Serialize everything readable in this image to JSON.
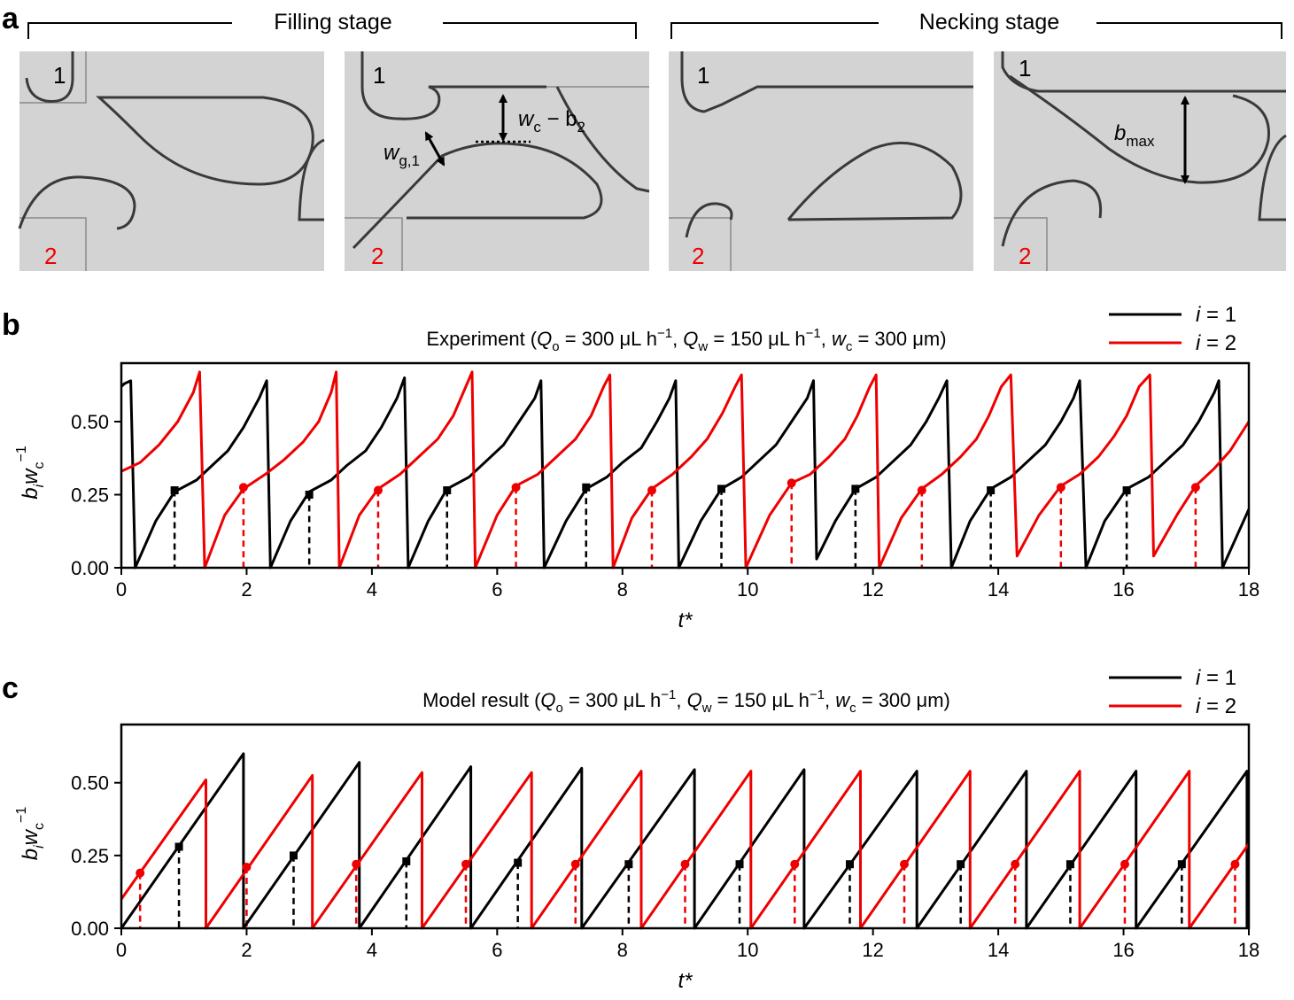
{
  "panels": {
    "a": {
      "letter": "a",
      "stages": [
        "Filling stage",
        "Necking stage"
      ],
      "inlet_1": "1",
      "inlet_2": "2",
      "annotations": {
        "wg1_main": "w",
        "wg1_sub": "g,1",
        "wcb2_w": "w",
        "wcb2_c": "c",
        "wcb2_minus": " − b",
        "wcb2_sub": "2",
        "bmax_b": "b",
        "bmax_sub": "max"
      }
    },
    "b": {
      "letter": "b",
      "title": "Experiment (Qo = 300 μL h−1, Qw = 150 μL h−1, wc = 300 μm)"
    },
    "c": {
      "letter": "c",
      "title": "Model result (Qo = 300 μL h−1, Qw = 150 μL h−1, wc = 300 μm)"
    }
  },
  "colors": {
    "series1": "#000000",
    "series2": "#ee0000",
    "photo_bg": "#d3d3d3",
    "interface": "#3a3a3a"
  },
  "chart_data": [
    {
      "id": "b",
      "type": "line",
      "title": "Experiment (Qo = 300 μL h−1, Qw = 150 μL h−1, wc = 300 μm)",
      "xlabel": "t*",
      "ylabel": "b_i w_c^−1",
      "xlim": [
        0,
        18
      ],
      "ylim": [
        0,
        0.7
      ],
      "xticks": [
        0,
        2,
        4,
        6,
        8,
        10,
        12,
        14,
        16,
        18
      ],
      "yticks": [
        0,
        0.25,
        0.5
      ],
      "ytick_labels": [
        "0.00",
        "0.25",
        "0.50"
      ],
      "legend": [
        "i = 1",
        "i = 2"
      ],
      "series": [
        {
          "name": "i = 1",
          "points": [
            [
              0,
              0.62
            ],
            [
              0.05,
              0.63
            ],
            [
              0.15,
              0.64
            ],
            [
              0.22,
              0.0
            ],
            [
              0.55,
              0.16
            ],
            [
              0.85,
              0.26
            ],
            [
              1.2,
              0.3
            ],
            [
              1.45,
              0.35
            ],
            [
              1.7,
              0.4
            ],
            [
              1.95,
              0.48
            ],
            [
              2.2,
              0.58
            ],
            [
              2.32,
              0.64
            ],
            [
              2.38,
              0.0
            ],
            [
              2.7,
              0.16
            ],
            [
              3.0,
              0.26
            ],
            [
              3.35,
              0.3
            ],
            [
              3.6,
              0.35
            ],
            [
              3.9,
              0.4
            ],
            [
              4.15,
              0.48
            ],
            [
              4.4,
              0.58
            ],
            [
              4.52,
              0.65
            ],
            [
              4.58,
              0.0
            ],
            [
              4.9,
              0.16
            ],
            [
              5.2,
              0.27
            ],
            [
              5.55,
              0.31
            ],
            [
              5.8,
              0.36
            ],
            [
              6.1,
              0.42
            ],
            [
              6.35,
              0.5
            ],
            [
              6.6,
              0.58
            ],
            [
              6.7,
              0.64
            ],
            [
              6.75,
              0.0
            ],
            [
              7.1,
              0.16
            ],
            [
              7.42,
              0.27
            ],
            [
              7.75,
              0.31
            ],
            [
              8.0,
              0.36
            ],
            [
              8.3,
              0.41
            ],
            [
              8.55,
              0.5
            ],
            [
              8.75,
              0.58
            ],
            [
              8.85,
              0.64
            ],
            [
              8.9,
              0.0
            ],
            [
              9.25,
              0.16
            ],
            [
              9.58,
              0.27
            ],
            [
              9.9,
              0.31
            ],
            [
              10.15,
              0.36
            ],
            [
              10.45,
              0.42
            ],
            [
              10.7,
              0.5
            ],
            [
              10.95,
              0.58
            ],
            [
              11.05,
              0.64
            ],
            [
              11.1,
              0.03
            ],
            [
              11.4,
              0.16
            ],
            [
              11.72,
              0.27
            ],
            [
              12.05,
              0.31
            ],
            [
              12.3,
              0.36
            ],
            [
              12.6,
              0.42
            ],
            [
              12.85,
              0.5
            ],
            [
              13.05,
              0.58
            ],
            [
              13.18,
              0.64
            ],
            [
              13.25,
              0.0
            ],
            [
              13.55,
              0.16
            ],
            [
              13.88,
              0.27
            ],
            [
              14.2,
              0.31
            ],
            [
              14.45,
              0.36
            ],
            [
              14.75,
              0.42
            ],
            [
              15.0,
              0.5
            ],
            [
              15.2,
              0.58
            ],
            [
              15.3,
              0.64
            ],
            [
              15.4,
              0.0
            ],
            [
              15.7,
              0.16
            ],
            [
              16.05,
              0.27
            ],
            [
              16.4,
              0.31
            ],
            [
              16.65,
              0.36
            ],
            [
              16.95,
              0.42
            ],
            [
              17.2,
              0.5
            ],
            [
              17.45,
              0.6
            ],
            [
              17.52,
              0.64
            ],
            [
              17.58,
              0.0
            ],
            [
              18,
              0.2
            ]
          ]
        },
        {
          "name": "i = 2",
          "points": [
            [
              0,
              0.33
            ],
            [
              0.3,
              0.36
            ],
            [
              0.6,
              0.42
            ],
            [
              0.9,
              0.5
            ],
            [
              1.15,
              0.6
            ],
            [
              1.25,
              0.67
            ],
            [
              1.33,
              0.0
            ],
            [
              1.65,
              0.18
            ],
            [
              1.95,
              0.27
            ],
            [
              2.3,
              0.32
            ],
            [
              2.6,
              0.37
            ],
            [
              2.9,
              0.43
            ],
            [
              3.15,
              0.5
            ],
            [
              3.35,
              0.6
            ],
            [
              3.43,
              0.67
            ],
            [
              3.48,
              0.0
            ],
            [
              3.8,
              0.18
            ],
            [
              4.1,
              0.27
            ],
            [
              4.45,
              0.32
            ],
            [
              4.75,
              0.38
            ],
            [
              5.05,
              0.44
            ],
            [
              5.3,
              0.52
            ],
            [
              5.5,
              0.62
            ],
            [
              5.6,
              0.67
            ],
            [
              5.65,
              0.0
            ],
            [
              6.0,
              0.18
            ],
            [
              6.3,
              0.28
            ],
            [
              6.65,
              0.32
            ],
            [
              6.95,
              0.38
            ],
            [
              7.25,
              0.44
            ],
            [
              7.5,
              0.52
            ],
            [
              7.7,
              0.62
            ],
            [
              7.8,
              0.66
            ],
            [
              7.85,
              0.0
            ],
            [
              8.15,
              0.17
            ],
            [
              8.47,
              0.27
            ],
            [
              8.8,
              0.32
            ],
            [
              9.1,
              0.38
            ],
            [
              9.35,
              0.44
            ],
            [
              9.6,
              0.53
            ],
            [
              9.8,
              0.62
            ],
            [
              9.9,
              0.66
            ],
            [
              9.97,
              0.0
            ],
            [
              10.35,
              0.18
            ],
            [
              10.7,
              0.29
            ],
            [
              11.0,
              0.32
            ],
            [
              11.3,
              0.38
            ],
            [
              11.55,
              0.44
            ],
            [
              11.75,
              0.52
            ],
            [
              11.95,
              0.62
            ],
            [
              12.05,
              0.66
            ],
            [
              12.1,
              0.0
            ],
            [
              12.45,
              0.17
            ],
            [
              12.78,
              0.27
            ],
            [
              13.1,
              0.32
            ],
            [
              13.4,
              0.38
            ],
            [
              13.65,
              0.44
            ],
            [
              13.85,
              0.52
            ],
            [
              14.05,
              0.62
            ],
            [
              14.2,
              0.66
            ],
            [
              14.3,
              0.04
            ],
            [
              14.65,
              0.18
            ],
            [
              15.0,
              0.28
            ],
            [
              15.3,
              0.32
            ],
            [
              15.6,
              0.38
            ],
            [
              15.85,
              0.45
            ],
            [
              16.05,
              0.52
            ],
            [
              16.25,
              0.62
            ],
            [
              16.42,
              0.66
            ],
            [
              16.48,
              0.04
            ],
            [
              16.85,
              0.18
            ],
            [
              17.15,
              0.28
            ],
            [
              17.45,
              0.34
            ],
            [
              17.7,
              0.4
            ],
            [
              18,
              0.5
            ]
          ]
        }
      ],
      "markers": {
        "i = 1": [
          [
            0.85,
            0.265
          ],
          [
            3.0,
            0.25
          ],
          [
            5.2,
            0.265
          ],
          [
            7.42,
            0.275
          ],
          [
            9.58,
            0.27
          ],
          [
            11.72,
            0.27
          ],
          [
            13.88,
            0.265
          ],
          [
            16.05,
            0.265
          ]
        ],
        "i = 2": [
          [
            1.95,
            0.275
          ],
          [
            4.1,
            0.265
          ],
          [
            6.3,
            0.275
          ],
          [
            8.47,
            0.265
          ],
          [
            10.7,
            0.29
          ],
          [
            12.78,
            0.265
          ],
          [
            15.0,
            0.275
          ],
          [
            17.15,
            0.275
          ]
        ]
      }
    },
    {
      "id": "c",
      "type": "line",
      "title": "Model result (Qo = 300 μL h−1, Qw = 150 μL h−1, wc = 300 μm)",
      "xlabel": "t*",
      "ylabel": "b_i w_c^−1",
      "xlim": [
        0,
        18
      ],
      "ylim": [
        0,
        0.7
      ],
      "xticks": [
        0,
        2,
        4,
        6,
        8,
        10,
        12,
        14,
        16,
        18
      ],
      "yticks": [
        0,
        0.25,
        0.5
      ],
      "ytick_labels": [
        "0.00",
        "0.25",
        "0.50"
      ],
      "legend": [
        "i = 1",
        "i = 2"
      ],
      "series": [
        {
          "name": "i = 1",
          "points": [
            [
              0,
              0.0
            ],
            [
              1.95,
              0.6
            ],
            [
              1.95,
              0.0
            ],
            [
              3.8,
              0.57
            ],
            [
              3.8,
              0.0
            ],
            [
              5.58,
              0.555
            ],
            [
              5.58,
              0.0
            ],
            [
              7.35,
              0.55
            ],
            [
              7.35,
              0.0
            ],
            [
              9.15,
              0.545
            ],
            [
              9.15,
              0.0
            ],
            [
              10.9,
              0.545
            ],
            [
              10.9,
              0.0
            ],
            [
              12.7,
              0.54
            ],
            [
              12.7,
              0.0
            ],
            [
              14.45,
              0.54
            ],
            [
              14.45,
              0.0
            ],
            [
              16.2,
              0.54
            ],
            [
              16.2,
              0.0
            ],
            [
              17.97,
              0.54
            ],
            [
              17.97,
              0.0
            ]
          ]
        },
        {
          "name": "i = 2",
          "points": [
            [
              0,
              0.1
            ],
            [
              1.35,
              0.51
            ],
            [
              1.35,
              0.0
            ],
            [
              3.05,
              0.525
            ],
            [
              3.05,
              0.0
            ],
            [
              4.8,
              0.535
            ],
            [
              4.8,
              0.0
            ],
            [
              6.55,
              0.535
            ],
            [
              6.55,
              0.0
            ],
            [
              8.3,
              0.54
            ],
            [
              8.3,
              0.0
            ],
            [
              10.05,
              0.54
            ],
            [
              10.05,
              0.0
            ],
            [
              11.8,
              0.54
            ],
            [
              11.8,
              0.0
            ],
            [
              13.55,
              0.54
            ],
            [
              13.55,
              0.0
            ],
            [
              15.3,
              0.54
            ],
            [
              15.3,
              0.0
            ],
            [
              17.05,
              0.54
            ],
            [
              17.05,
              0.0
            ],
            [
              18,
              0.29
            ]
          ]
        }
      ],
      "markers": {
        "i = 1": [
          [
            0.92,
            0.28
          ],
          [
            2.75,
            0.25
          ],
          [
            4.55,
            0.23
          ],
          [
            6.33,
            0.225
          ],
          [
            8.1,
            0.22
          ],
          [
            9.87,
            0.22
          ],
          [
            11.63,
            0.22
          ],
          [
            13.4,
            0.22
          ],
          [
            15.15,
            0.22
          ],
          [
            16.93,
            0.22
          ]
        ],
        "i = 2": [
          [
            0.3,
            0.19
          ],
          [
            2.0,
            0.21
          ],
          [
            3.75,
            0.22
          ],
          [
            5.5,
            0.22
          ],
          [
            7.25,
            0.22
          ],
          [
            9.0,
            0.22
          ],
          [
            10.75,
            0.22
          ],
          [
            12.5,
            0.22
          ],
          [
            14.27,
            0.22
          ],
          [
            16.02,
            0.22
          ],
          [
            17.78,
            0.22
          ]
        ]
      }
    }
  ]
}
